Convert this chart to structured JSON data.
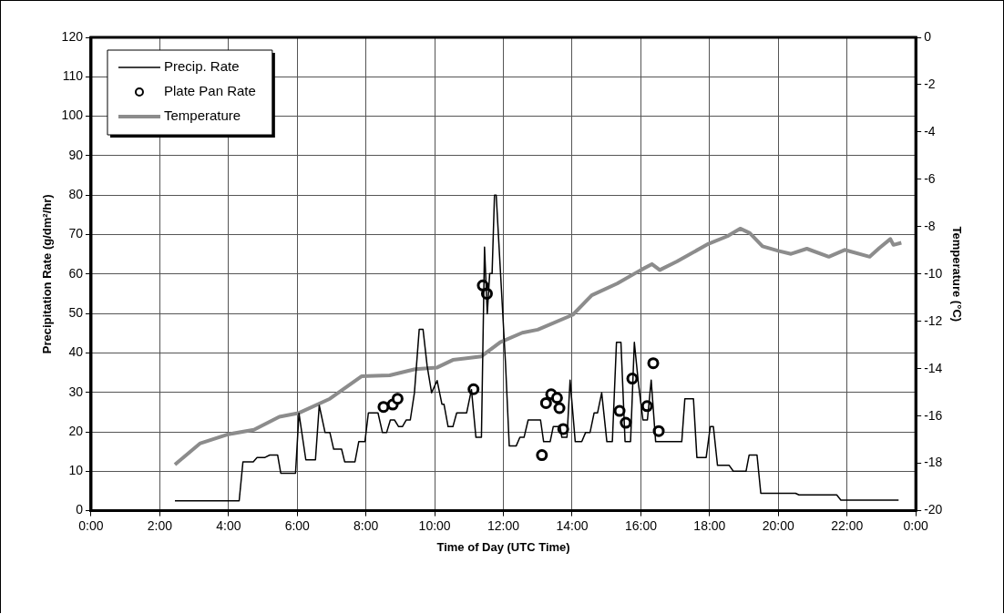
{
  "chart_data": {
    "type": "line",
    "xlabel": "Time of Day (UTC Time)",
    "ylabel": "Precipitation Rate (g/dm²/hr)",
    "y2label": "Temperature (°C)",
    "xlim": [
      0,
      24
    ],
    "xticks": [
      {
        "value": 0,
        "label": "0:00"
      },
      {
        "value": 2,
        "label": "2:00"
      },
      {
        "value": 4,
        "label": "4:00"
      },
      {
        "value": 6,
        "label": "6:00"
      },
      {
        "value": 8,
        "label": "8:00"
      },
      {
        "value": 10,
        "label": "10:00"
      },
      {
        "value": 12,
        "label": "12:00"
      },
      {
        "value": 14,
        "label": "14:00"
      },
      {
        "value": 16,
        "label": "16:00"
      },
      {
        "value": 18,
        "label": "18:00"
      },
      {
        "value": 20,
        "label": "20:00"
      },
      {
        "value": 22,
        "label": "22:00"
      },
      {
        "value": 24,
        "label": "0:00"
      }
    ],
    "ylim": [
      0,
      120
    ],
    "yticks": [
      0,
      10,
      20,
      30,
      40,
      50,
      60,
      70,
      80,
      90,
      100,
      110,
      120
    ],
    "y2lim": [
      -20,
      0
    ],
    "y2ticks": [
      -20,
      -18,
      -16,
      -14,
      -12,
      -10,
      -8,
      -6,
      -4,
      -2,
      0
    ],
    "grid": true,
    "legend": "top left",
    "series": [
      {
        "name": "Precip. Rate",
        "color": "#000000",
        "marker": "none",
        "x": [
          2.44,
          4.31,
          4.42,
          4.72,
          4.83,
          5.06,
          5.2,
          5.43,
          5.52,
          5.95,
          6.05,
          6.25,
          6.53,
          6.64,
          6.81,
          6.95,
          7.06,
          7.29,
          7.38,
          7.68,
          7.79,
          7.97,
          8.07,
          8.35,
          8.48,
          8.6,
          8.71,
          8.83,
          8.95,
          9.06,
          9.17,
          9.29,
          9.41,
          9.55,
          9.66,
          9.78,
          9.91,
          10.07,
          10.21,
          10.27,
          10.39,
          10.53,
          10.64,
          10.93,
          11.07,
          11.2,
          11.36,
          11.45,
          11.53,
          11.6,
          11.67,
          11.74,
          11.79,
          12.06,
          12.17,
          12.37,
          12.48,
          12.6,
          12.72,
          13.08,
          13.17,
          13.36,
          13.45,
          13.65,
          13.7,
          13.85,
          13.94,
          14.09,
          14.28,
          14.39,
          14.52,
          14.64,
          14.74,
          14.86,
          15.01,
          15.17,
          15.29,
          15.42,
          15.54,
          15.7,
          15.81,
          15.93,
          16.06,
          16.19,
          16.3,
          16.43,
          17.19,
          17.28,
          17.53,
          17.63,
          17.9,
          18.02,
          18.11,
          18.23,
          18.57,
          18.69,
          19.06,
          19.15,
          19.38,
          19.49,
          20.5,
          20.6,
          21.7,
          21.82,
          23.5
        ],
        "values": [
          2.5,
          2.5,
          12.4,
          12.4,
          13.5,
          13.5,
          14.1,
          14.1,
          9.5,
          9.5,
          24.7,
          12.9,
          12.9,
          26.7,
          19.8,
          19.8,
          15.6,
          15.6,
          12.4,
          12.4,
          17.5,
          17.5,
          24.8,
          24.8,
          19.8,
          19.8,
          23,
          23,
          21.3,
          21.3,
          23,
          23,
          29.9,
          46,
          46,
          36.7,
          29.9,
          33,
          27,
          27,
          21.3,
          21.3,
          24.8,
          24.8,
          30.7,
          18.6,
          18.6,
          66.8,
          49.9,
          60.1,
          60.1,
          80,
          80,
          37.5,
          16.4,
          16.4,
          18.6,
          18.6,
          23,
          23,
          17.5,
          17.5,
          21.3,
          21.3,
          18.6,
          18.6,
          33.1,
          17.5,
          17.5,
          19.8,
          19.8,
          24.8,
          24.8,
          29.9,
          17.5,
          17.5,
          42.7,
          42.7,
          17.5,
          17.5,
          42.7,
          32.2,
          23,
          23,
          33.1,
          17.5,
          17.5,
          28.4,
          28.4,
          13.5,
          13.5,
          21.3,
          21.3,
          11.5,
          11.5,
          10,
          10,
          14.1,
          14.1,
          4.4,
          4.4,
          4,
          4,
          2.7,
          2.7
        ]
      },
      {
        "name": "Plate Pan Rate",
        "type": "scatter",
        "color": "#000000",
        "marker": "circle",
        "x": [
          8.51,
          8.78,
          8.92,
          11.13,
          11.4,
          11.52,
          13.12,
          13.24,
          13.39,
          13.56,
          13.63,
          13.74,
          15.38,
          15.56,
          15.75,
          16.18,
          16.36,
          16.52
        ],
        "values": [
          26.3,
          26.9,
          28.4,
          30.8,
          57.1,
          55,
          14.1,
          27.3,
          29.5,
          28.6,
          26,
          20.7,
          25.3,
          22.3,
          33.5,
          26.5,
          37.4,
          20.2
        ]
      },
      {
        "name": "Temperature",
        "type": "line",
        "axis": "y2",
        "color": "#8c8c8c",
        "marker": "none",
        "x": [
          2.44,
          3.18,
          4.0,
          4.74,
          5.48,
          6.03,
          6.95,
          7.87,
          8.69,
          9.43,
          10.07,
          10.53,
          11.36,
          11.91,
          12.55,
          13.0,
          14.02,
          14.57,
          15.31,
          16.0,
          16.32,
          16.55,
          17.05,
          17.97,
          18.52,
          18.89,
          19.17,
          19.54,
          20.0,
          20.37,
          20.83,
          21.47,
          21.93,
          22.66,
          22.94,
          23.26,
          23.35,
          23.58
        ],
        "values": [
          -18.05,
          -17.15,
          -16.77,
          -16.58,
          -16.03,
          -15.88,
          -15.27,
          -14.32,
          -14.28,
          -14.02,
          -13.95,
          -13.63,
          -13.48,
          -12.88,
          -12.48,
          -12.35,
          -11.72,
          -10.9,
          -10.4,
          -9.83,
          -9.58,
          -9.83,
          -9.47,
          -8.72,
          -8.4,
          -8.08,
          -8.27,
          -8.83,
          -9.02,
          -9.15,
          -8.93,
          -9.27,
          -8.98,
          -9.27,
          -8.9,
          -8.52,
          -8.77,
          -8.68
        ]
      }
    ]
  }
}
